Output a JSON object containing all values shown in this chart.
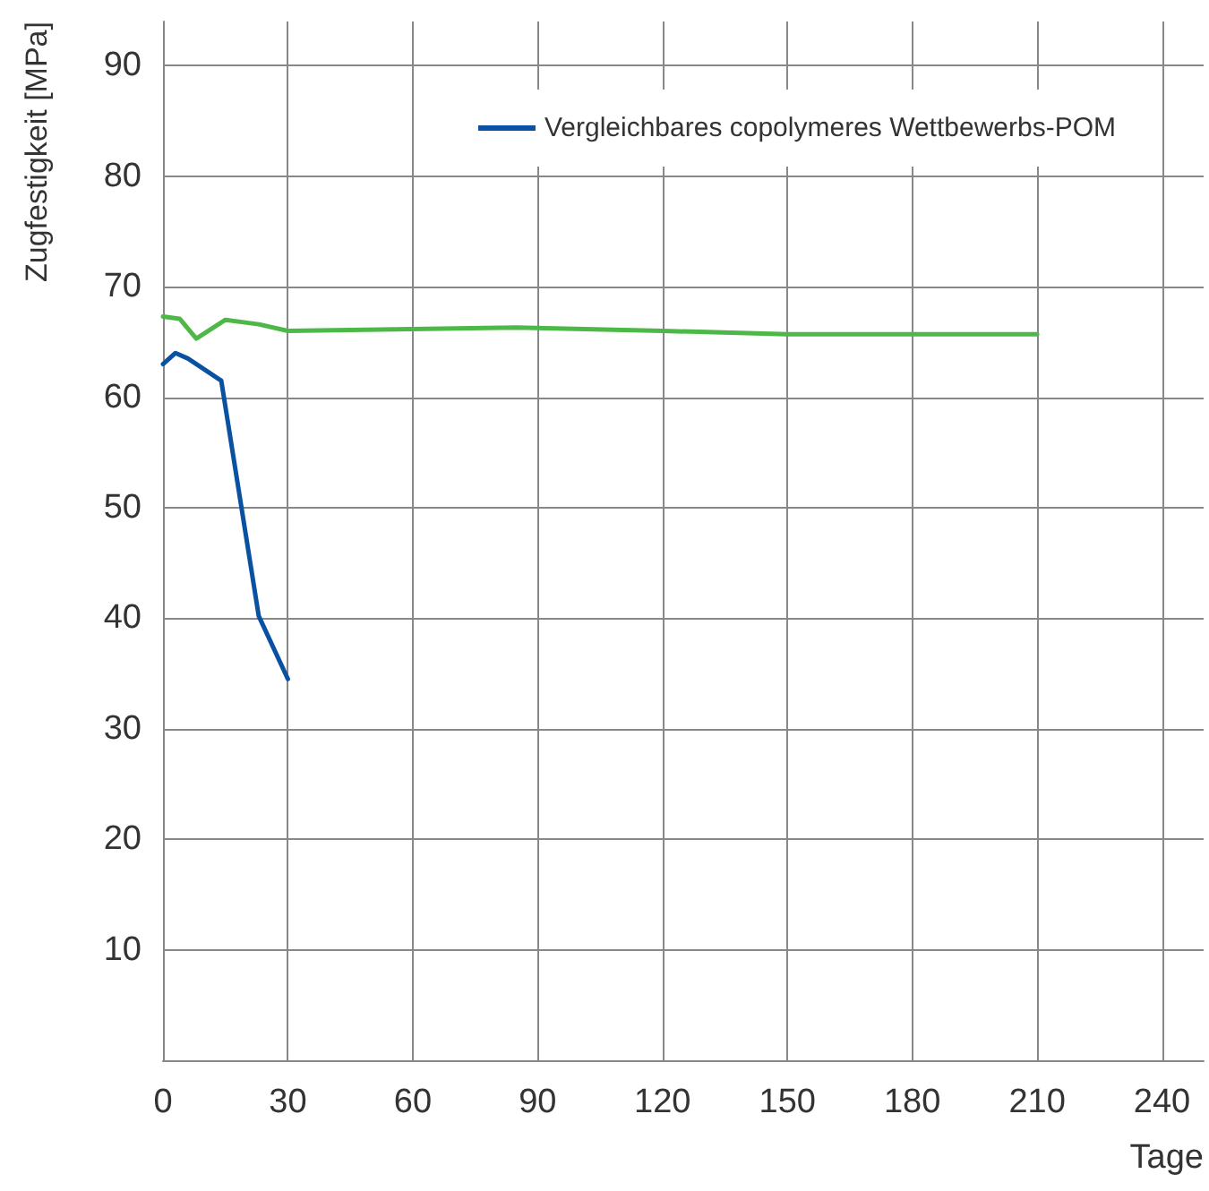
{
  "chart_data": {
    "type": "line",
    "xlabel": "Tage",
    "ylabel": "Zugfestigkeit [MPa]",
    "series": [
      {
        "color": "#4db848",
        "x": [
          0,
          4,
          8,
          15,
          23,
          30,
          85,
          120,
          150,
          210
        ],
        "values": [
          67.3,
          67.1,
          65.3,
          67.0,
          66.6,
          66.0,
          66.3,
          66.0,
          65.7,
          65.7
        ]
      },
      {
        "name": "Vergleichbares copolymeres Wettbewerbs-POM",
        "color": "#0a52a1",
        "x": [
          0,
          3,
          6,
          14,
          23,
          30
        ],
        "values": [
          63.0,
          64.0,
          63.5,
          61.5,
          40.2,
          34.5
        ]
      }
    ],
    "xlim": [
      0,
      250
    ],
    "xticks": [
      0,
      30,
      60,
      90,
      120,
      150,
      180,
      210,
      240
    ],
    "ylim": [
      0,
      94
    ],
    "yticks": [
      {
        "value": 0,
        "label": null
      },
      10,
      20,
      30,
      40,
      50,
      60,
      70,
      80,
      90
    ],
    "grid": true,
    "legend": "top right",
    "marker": "none",
    "line_style": "solid"
  }
}
